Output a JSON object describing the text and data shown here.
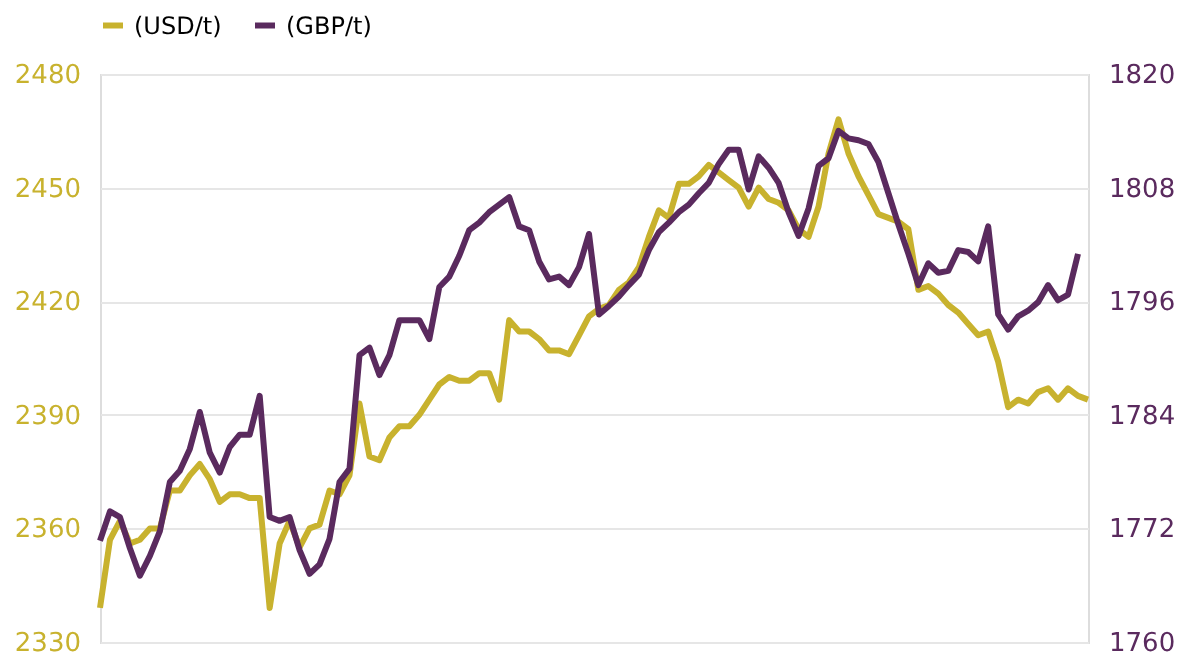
{
  "chart_data": {
    "type": "line",
    "categories": [
      null,
      null,
      null,
      null,
      null,
      null,
      null,
      null,
      null,
      null,
      null,
      null,
      null,
      null,
      null,
      null,
      null,
      null,
      null,
      null,
      null,
      null,
      null,
      null,
      null,
      null,
      null,
      null,
      null,
      null,
      null,
      null,
      null,
      null,
      null,
      null,
      null,
      null,
      null,
      null,
      null,
      null,
      null,
      null,
      null,
      null,
      null,
      null,
      null,
      null,
      null,
      null,
      null,
      null,
      null,
      null,
      null,
      null,
      null,
      null,
      null,
      null,
      null,
      null,
      null,
      null,
      null,
      null,
      null,
      null,
      null,
      null,
      null,
      null,
      null,
      null,
      null,
      null,
      null,
      null,
      null,
      null,
      null,
      null,
      null,
      null,
      null,
      null,
      null,
      null,
      null,
      null,
      null,
      null,
      null,
      null,
      null,
      null,
      null,
      null
    ],
    "series": [
      {
        "name": "(USD/t)",
        "color": "#c8b22e",
        "values": [
          2339,
          2357,
          2362,
          2356,
          2357,
          2360,
          2360,
          2370,
          2370,
          2374,
          2377,
          2373,
          2367,
          2369,
          2369,
          2368,
          2368,
          2339,
          2356,
          2362,
          2355,
          2360,
          2361,
          2370,
          2369,
          2374,
          2393,
          2379,
          2378,
          2384,
          2387,
          2387,
          2390,
          2394,
          2398,
          2400,
          2399,
          2399,
          2401,
          2401,
          2394,
          2415,
          2412,
          2412,
          2410,
          2407,
          2407,
          2406,
          2411,
          2416,
          2418,
          2419,
          2423,
          2425,
          2429,
          2437,
          2444,
          2442,
          2451,
          2451,
          2453,
          2456,
          2454,
          2452,
          2450,
          2445,
          2450,
          2447,
          2446,
          2444,
          2439,
          2437,
          2445,
          2459,
          2468,
          2459,
          2453,
          2448,
          2443,
          2442,
          2441,
          2439,
          2423,
          2424,
          2422,
          2419,
          2417,
          2414,
          2411,
          2412,
          2404,
          2392,
          2394,
          2393,
          2396,
          2397,
          2394,
          2397,
          2395,
          2394
        ]
      },
      {
        "name": "(GBP/t)",
        "color": "#5a2a5e",
        "axis": "y2",
        "values": [
          1770.7,
          1773.8,
          1773.2,
          1769.9,
          1767.0,
          1769.1,
          1771.7,
          1776.9,
          1778.1,
          1780.4,
          1784.3,
          1780.0,
          1777.9,
          1780.6,
          1781.9,
          1781.9,
          1786.0,
          1773.2,
          1772.8,
          1773.2,
          1769.7,
          1767.2,
          1768.2,
          1770.9,
          1776.9,
          1778.3,
          1790.3,
          1791.1,
          1788.2,
          1790.3,
          1794.0,
          1794.0,
          1794.0,
          1792.0,
          1797.5,
          1798.6,
          1800.8,
          1803.5,
          1804.3,
          1805.4,
          1806.2,
          1807.0,
          1803.9,
          1803.5,
          1800.2,
          1798.3,
          1798.6,
          1797.7,
          1799.6,
          1803.1,
          1794.6,
          1795.5,
          1796.5,
          1797.7,
          1798.8,
          1801.4,
          1803.3,
          1804.3,
          1805.4,
          1806.2,
          1807.4,
          1808.5,
          1810.5,
          1812.0,
          1812.0,
          1807.8,
          1811.3,
          1810.1,
          1808.5,
          1805.4,
          1802.9,
          1805.8,
          1810.3,
          1811.1,
          1814.0,
          1813.2,
          1813.0,
          1812.6,
          1810.7,
          1807.4,
          1804.1,
          1801.0,
          1797.7,
          1800.0,
          1799.0,
          1799.2,
          1801.4,
          1801.2,
          1800.2,
          1803.9,
          1794.6,
          1793.0,
          1794.4,
          1795.0,
          1795.9,
          1797.7,
          1796.1,
          1796.7,
          1801.0,
          null
        ]
      }
    ],
    "ylim": [
      2330,
      2480
    ],
    "yticks": [
      2330,
      2360,
      2390,
      2420,
      2450,
      2480
    ],
    "y2lim": [
      1760,
      1820
    ],
    "y2ticks": [
      1760,
      1772,
      1784,
      1796,
      1808,
      1820
    ],
    "grid": "y",
    "legend": "top",
    "tick_labels": "y",
    "marker": "none",
    "line_style": "solid"
  }
}
